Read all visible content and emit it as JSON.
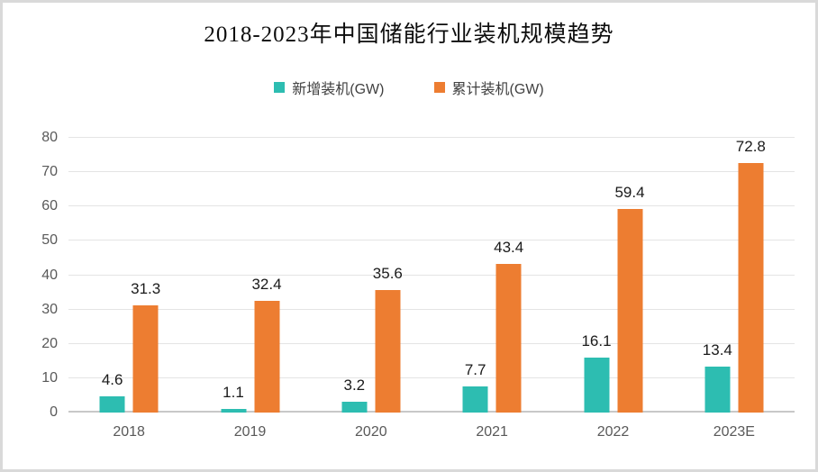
{
  "title": "2018-2023年中国储能行业装机规模趋势",
  "chart_data": {
    "type": "bar",
    "title": "2018-2023年中国储能行业装机规模趋势",
    "categories": [
      "2018",
      "2019",
      "2020",
      "2021",
      "2022",
      "2023E"
    ],
    "series": [
      {
        "name": "新增装机(GW)",
        "color": "#2DBDB1",
        "values": [
          4.6,
          1.1,
          3.2,
          7.7,
          16.1,
          13.4
        ]
      },
      {
        "name": "累计装机(GW)",
        "color": "#ED7D31",
        "values": [
          31.3,
          32.4,
          35.6,
          43.4,
          59.4,
          72.8
        ]
      }
    ],
    "xlabel": "",
    "ylabel": "",
    "ylim": [
      0,
      80
    ],
    "yticks": [
      0,
      10,
      20,
      30,
      40,
      50,
      60,
      70,
      80
    ],
    "grid": true,
    "legend_position": "top",
    "value_labels_shown": true
  },
  "colors": {
    "gridline": "#e4e4e4",
    "axis_baseline": "#c8c8c8",
    "tick_text": "#595959",
    "value_label_text": "#1a1a1a",
    "frame_border": "#d9d9d9"
  }
}
